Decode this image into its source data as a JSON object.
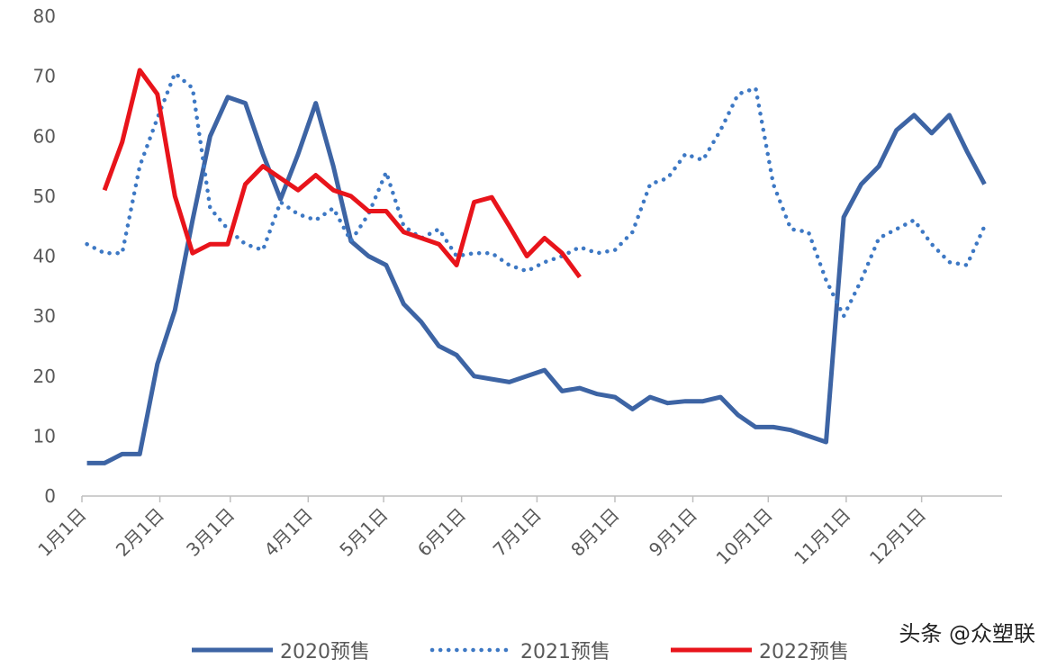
{
  "chart_data": {
    "type": "line",
    "x": [
      2,
      9,
      16,
      23,
      30,
      37,
      44,
      51,
      58,
      65,
      72,
      79,
      86,
      93,
      100,
      107,
      114,
      121,
      128,
      135,
      142,
      149,
      156,
      163,
      170,
      177,
      184,
      191,
      198,
      205,
      212,
      219,
      226,
      233,
      240,
      247,
      254,
      261,
      268,
      275,
      282,
      289,
      296,
      303,
      310,
      317,
      324,
      331,
      338,
      345,
      352,
      359
    ],
    "xlim": [
      0,
      366
    ],
    "xticks": [
      {
        "value": 0,
        "label": "1月1日"
      },
      {
        "value": 31,
        "label": "2月1日"
      },
      {
        "value": 59,
        "label": "3月1日"
      },
      {
        "value": 90,
        "label": "4月1日"
      },
      {
        "value": 120,
        "label": "5月1日"
      },
      {
        "value": 151,
        "label": "6月1日"
      },
      {
        "value": 181,
        "label": "7月1日"
      },
      {
        "value": 212,
        "label": "8月1日"
      },
      {
        "value": 243,
        "label": "9月1日"
      },
      {
        "value": 273,
        "label": "10月1日"
      },
      {
        "value": 304,
        "label": "11月1日"
      },
      {
        "value": 334,
        "label": "12月1日"
      }
    ],
    "ylim": [
      0,
      80
    ],
    "yticks": [
      0,
      10,
      20,
      30,
      40,
      50,
      60,
      70,
      80
    ],
    "grid": false,
    "legend": "bottom",
    "series": [
      {
        "name": "2020预售",
        "color": "#3d64a4",
        "style": "solid",
        "values": [
          5.5,
          5.5,
          7,
          7,
          22,
          31,
          46,
          60,
          66.5,
          65.5,
          57,
          49.5,
          57,
          65.5,
          55,
          42.5,
          40,
          38.5,
          32,
          29,
          25,
          23.5,
          20,
          19.5,
          19,
          20,
          21,
          17.5,
          18,
          17,
          16.5,
          14.5,
          16.5,
          15.5,
          15.8,
          15.8,
          16.5,
          13.5,
          11.5,
          11.5,
          11,
          10,
          9,
          46.5,
          52,
          55,
          61,
          63.5,
          60.5,
          63.5,
          57.5,
          52
        ]
      },
      {
        "name": "2021预售",
        "color": "#3d78c4",
        "style": "dotted",
        "values": [
          42,
          40.5,
          40.5,
          55,
          63,
          70.5,
          68,
          48,
          44.5,
          42,
          41,
          49,
          47,
          46,
          48,
          42.5,
          47,
          54,
          45,
          43,
          44.5,
          40,
          40.5,
          40.5,
          38.5,
          37.5,
          39,
          40,
          41.5,
          40.5,
          41,
          44,
          52,
          53,
          57,
          56,
          61,
          67,
          68,
          52,
          44.5,
          44,
          36,
          30,
          36,
          43,
          44.5,
          46,
          42,
          39,
          38.5,
          45
        ]
      },
      {
        "name": "2022预售",
        "color": "#e8141b",
        "style": "solid",
        "values": [
          null,
          51,
          59,
          71,
          67,
          50,
          40.5,
          42,
          42,
          52,
          55,
          53,
          51,
          53.5,
          51,
          50,
          47.5,
          47.5,
          44,
          43,
          42,
          38.5,
          49,
          49.8,
          45,
          40,
          43,
          40.5,
          36.5,
          null,
          null,
          null,
          null,
          null,
          null,
          null,
          null,
          null,
          null,
          null,
          null,
          null,
          null,
          null,
          null,
          null,
          null,
          null,
          null,
          null,
          null,
          null
        ]
      }
    ]
  },
  "watermark": "头条 @众塑联"
}
